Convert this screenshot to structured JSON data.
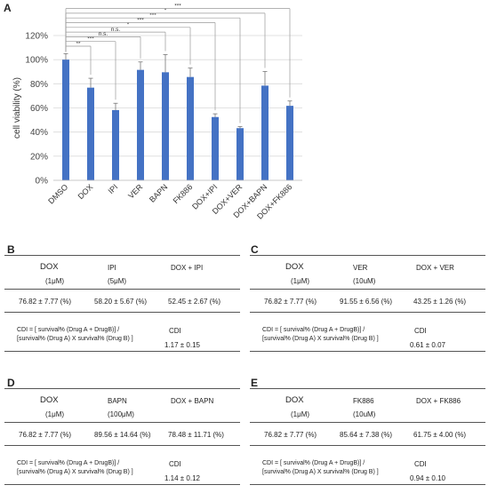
{
  "panels": {
    "A": "A",
    "B": "B",
    "C": "C",
    "D": "D",
    "E": "E"
  },
  "chart_data": {
    "type": "bar",
    "ylabel": "cell viability (%)",
    "ylim": [
      0,
      120
    ],
    "yticks": [
      "0%",
      "20%",
      "40%",
      "60%",
      "80%",
      "100%",
      "120%"
    ],
    "grid": true,
    "color": "#4472c4",
    "categories": [
      "DMSO",
      "DOX",
      "IPI",
      "VER",
      "BAPN",
      "FK886",
      "DOX+IPI",
      "DOX+VER",
      "DOX+BAPN",
      "DOX+FK886"
    ],
    "values": [
      100,
      76.82,
      58.2,
      91.55,
      89.56,
      85.64,
      52.45,
      43.25,
      78.48,
      61.75
    ],
    "errors": [
      5,
      7.77,
      5.67,
      6.56,
      14.64,
      7.38,
      2.67,
      1.26,
      11.71,
      4.0
    ],
    "significance": [
      {
        "to": "DOX",
        "label": "**"
      },
      {
        "to": "IPI",
        "label": "***"
      },
      {
        "to": "VER",
        "label": "n.s."
      },
      {
        "to": "BAPN",
        "label": "n.s."
      },
      {
        "to": "FK886",
        "label": "*"
      },
      {
        "to": "DOX+IPI",
        "label": "***"
      },
      {
        "to": "DOX+VER",
        "label": "***"
      },
      {
        "to": "DOX+BAPN",
        "label": "*"
      },
      {
        "to": "DOX+FK886",
        "label": "***"
      }
    ]
  },
  "tables": {
    "B": {
      "d1": "DOX",
      "d1c": "(1μM)",
      "d2": "IPI",
      "d2c": "(5μM)",
      "d3": "DOX + IPI",
      "v1": "76.82 ± 7.77 (%)",
      "v2": "58.20 ± 5.67 (%)",
      "v3": "52.45 ± 2.67 (%)",
      "f1": "CDI  =  [ survival% (Drug A + DrugB)] /",
      "f2": "[survival% (Drug A) X survival% (Drug B) ]",
      "cdi": "CDI",
      "cdiv": "1.17 ± 0.15"
    },
    "C": {
      "d1": "DOX",
      "d1c": "(1μM)",
      "d2": "VER",
      "d2c": "(10uM)",
      "d3": "DOX + VER",
      "v1": "76.82 ± 7.77 (%)",
      "v2": "91.55 ± 6.56 (%)",
      "v3": "43.25 ± 1.26 (%)",
      "f1": "CDI  =  [ survival% (Drug A + DrugB)] /",
      "f2": "[survival% (Drug A) X survival% (Drug B) ]",
      "cdi": "CDI",
      "cdiv": "0.61 ± 0.07"
    },
    "D": {
      "d1": "DOX",
      "d1c": "(1μM)",
      "d2": "BAPN",
      "d2c": "(100μM)",
      "d3": "DOX + BAPN",
      "v1": "76.82 ± 7.77 (%)",
      "v2": "89.56 ± 14.64 (%)",
      "v3": "78.48 ± 11.71 (%)",
      "f1": "CDI  =  [ survival% (Drug A + DrugB)] /",
      "f2": "[survival% (Drug A) X survival% (Drug B) ]",
      "cdi": "CDI",
      "cdiv": "1.14 ± 0.12"
    },
    "E": {
      "d1": "DOX",
      "d1c": "(1μM)",
      "d2": "FK886",
      "d2c": "(10uM)",
      "d3": "DOX + FK886",
      "v1": "76.82 ± 7.77 (%)",
      "v2": "85.64 ± 7.38 (%)",
      "v3": "61.75 ± 4.00 (%)",
      "f1": "CDI  =  [ survival% (Drug A + DrugB)] /",
      "f2": "[survival% (Drug A) X survival% (Drug B) ]",
      "cdi": "CDI",
      "cdiv": "0.94 ± 0.10"
    }
  }
}
